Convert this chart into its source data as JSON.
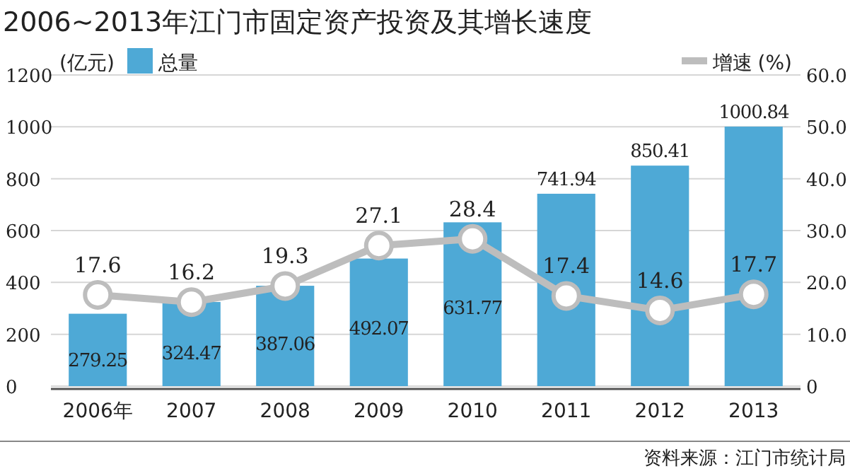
{
  "chart_data": {
    "type": "bar",
    "title": "2006~2013年江门市固定资产投资及其增长速度",
    "ylabel": "(亿元)",
    "y2label": "(%)",
    "categories": [
      "2006年",
      "2007",
      "2008",
      "2009",
      "2010",
      "2011",
      "2012",
      "2013"
    ],
    "series": [
      {
        "name": "总量",
        "color": "#4ea9d6",
        "values": [
          279.25,
          324.47,
          387.06,
          492.07,
          631.77,
          741.94,
          850.41,
          1000.84
        ]
      },
      {
        "name": "增速",
        "type": "line",
        "axis": "y2",
        "color": "#bdbdbd",
        "values": [
          17.6,
          16.2,
          19.3,
          27.1,
          28.4,
          17.4,
          14.6,
          17.7
        ]
      }
    ],
    "ylim": [
      0,
      1200
    ],
    "yticks": [
      0,
      200,
      400,
      600,
      800,
      1000,
      1200
    ],
    "y2lim": [
      0,
      60
    ],
    "y2ticks": [
      {
        "value": 0,
        "label": "0"
      },
      {
        "value": 10,
        "label": "10.0"
      },
      {
        "value": 20,
        "label": "20.0"
      },
      {
        "value": 30,
        "label": "30.0"
      },
      {
        "value": 40,
        "label": "40.0"
      },
      {
        "value": 50,
        "label": "50.0"
      },
      {
        "value": 60,
        "label": "60.0"
      }
    ],
    "grid": "y",
    "legend": "top",
    "marker": "circle",
    "line_style": "solid",
    "data_labels": true,
    "annotations": [
      "资料来源：江门市统计局"
    ]
  }
}
